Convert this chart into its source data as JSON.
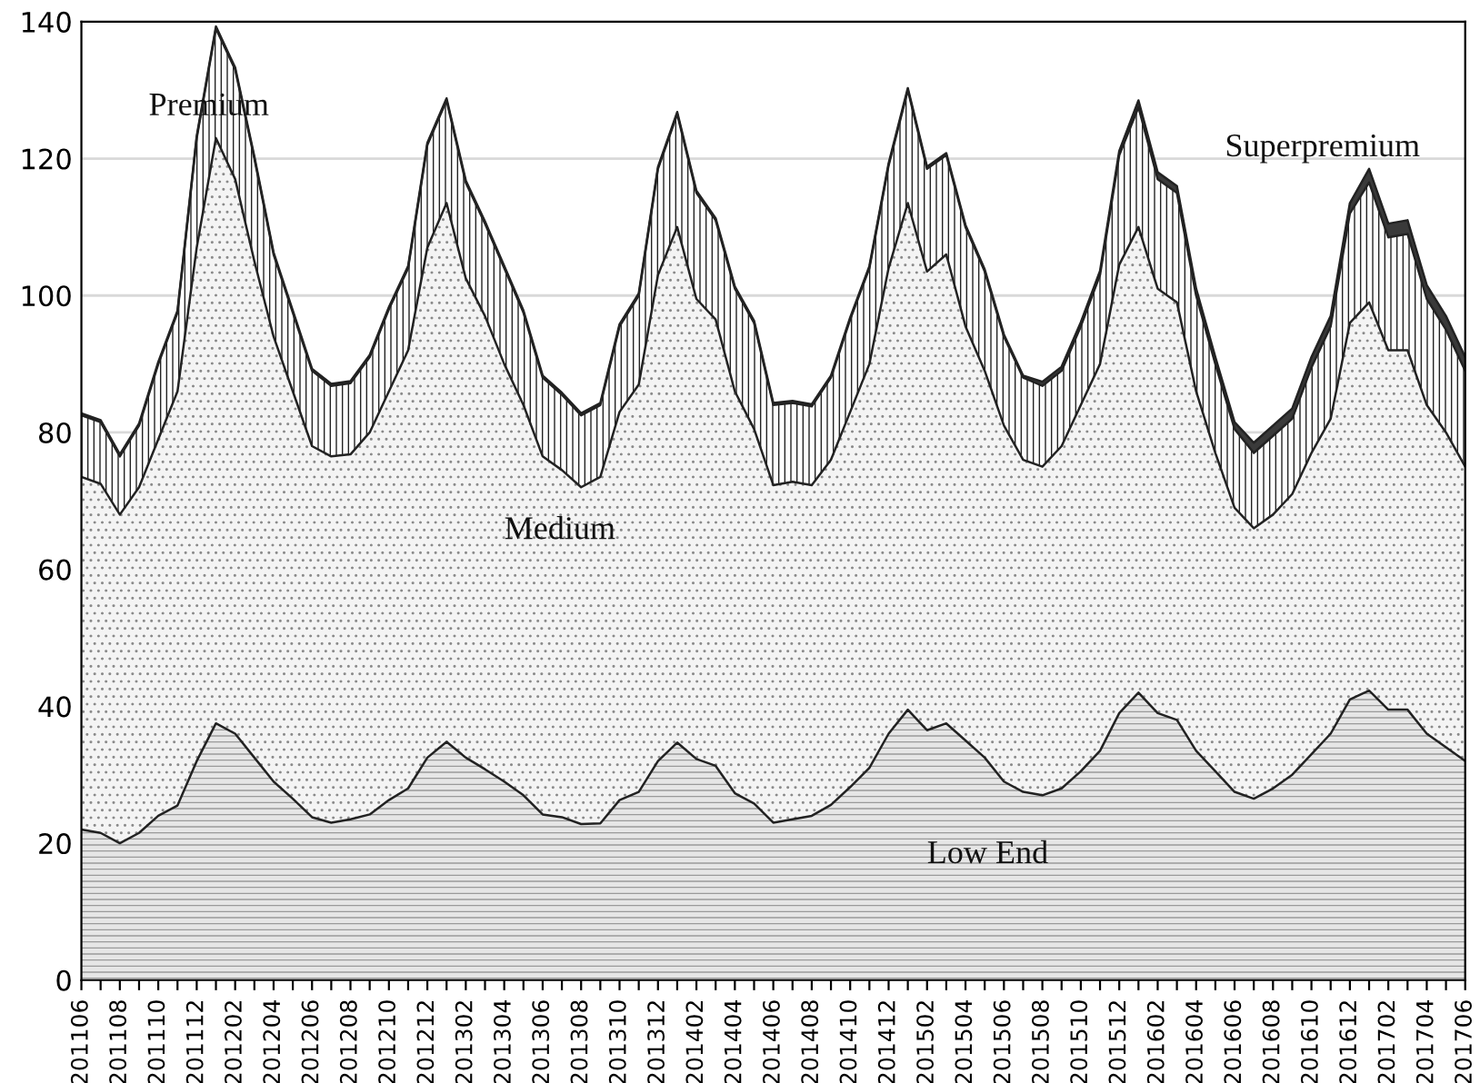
{
  "chart_data": {
    "type": "area",
    "stacked": true,
    "categories": [
      "201106",
      null,
      "201108",
      null,
      "201110",
      null,
      "201112",
      null,
      "201202",
      null,
      "201204",
      null,
      "201206",
      null,
      "201208",
      null,
      "201210",
      null,
      "201212",
      null,
      "201302",
      null,
      "201304",
      null,
      "201306",
      null,
      "201308",
      null,
      "201310",
      null,
      "201312",
      null,
      "201402",
      null,
      "201404",
      null,
      "201406",
      null,
      "201408",
      null,
      "201410",
      null,
      "201412",
      null,
      "201502",
      null,
      "201504",
      null,
      "201506",
      null,
      "201508",
      null,
      "201510",
      null,
      "201512",
      null,
      "201602",
      null,
      "201604",
      null,
      "201606",
      null,
      "201608",
      null,
      "201610",
      null,
      "201612",
      null,
      "201702",
      null,
      "201704",
      null,
      "201706"
    ],
    "series": [
      {
        "name": "Low End",
        "color": "#e6e6e6",
        "values": [
          22,
          21.5,
          20,
          21.5,
          24,
          25.5,
          32,
          37.5,
          36,
          32.5,
          29,
          26.5,
          23.8,
          23,
          23.5,
          24.2,
          26.3,
          28,
          32.5,
          34.8,
          32.5,
          30.8,
          29,
          27,
          24.2,
          23.8,
          22.8,
          22.9,
          26.3,
          27.5,
          32,
          34.7,
          32.3,
          31.3,
          27.3,
          25.8,
          23,
          23.5,
          24,
          25.6,
          28.2,
          31,
          36,
          39.5,
          36.5,
          37.5,
          35,
          32.5,
          29,
          27.5,
          27,
          28,
          30.5,
          33.5,
          39,
          42,
          39,
          38,
          33.5,
          30.5,
          27.5,
          26.5,
          28,
          30,
          33,
          36,
          41,
          42.3,
          39.5,
          39.5,
          36,
          34,
          32
        ]
      },
      {
        "name": "Medium",
        "color": "#f4f4f4",
        "values": [
          51.5,
          51,
          48,
          50.5,
          55,
          60.5,
          75,
          85.5,
          81,
          72.5,
          65,
          59.5,
          54.2,
          53.5,
          53.3,
          55.8,
          59.7,
          64,
          74.5,
          78.7,
          70,
          66.2,
          61,
          57,
          52.3,
          50.7,
          49.2,
          50.6,
          56.7,
          59.5,
          71,
          75.3,
          67.2,
          65.2,
          58.7,
          54.7,
          49.3,
          49.3,
          48.3,
          50.4,
          54.8,
          59,
          68,
          74,
          67,
          68.5,
          60.5,
          56.5,
          52,
          48.5,
          48,
          50,
          53.5,
          56.5,
          65.5,
          68,
          62,
          61,
          52.5,
          46.5,
          41.5,
          39.5,
          40,
          41,
          44,
          46,
          55,
          56.7,
          52.5,
          52.5,
          48,
          46,
          43
        ]
      },
      {
        "name": "Premium",
        "color": "#ffffff",
        "values": [
          9,
          9,
          8.5,
          9,
          11,
          11.5,
          16,
          16,
          16,
          15,
          12,
          11.5,
          11,
          10.3,
          10.4,
          11,
          12,
          12,
          15,
          15,
          14,
          13.5,
          14,
          13.5,
          11.5,
          11,
          10.5,
          10.5,
          12.5,
          13,
          15.5,
          16.5,
          15.5,
          14.5,
          15,
          15.5,
          11.7,
          11.5,
          11.5,
          12,
          13.5,
          14,
          15,
          16.5,
          15,
          14.5,
          14.5,
          14.5,
          13,
          12,
          11.8,
          11,
          11.5,
          13,
          16,
          17.5,
          16,
          16,
          14,
          13,
          11.5,
          11,
          11.5,
          11,
          12.5,
          13.5,
          16,
          17.5,
          16.5,
          17,
          15.5,
          15,
          14
        ]
      },
      {
        "name": "Superpremium",
        "color": "#3a3a3a",
        "values": [
          0.3,
          0.3,
          0.3,
          0.3,
          0.3,
          0.3,
          0.3,
          0.3,
          0.3,
          0.3,
          0.3,
          0.3,
          0.3,
          0.3,
          0.3,
          0.3,
          0.3,
          0.3,
          0.3,
          0.3,
          0.3,
          0.3,
          0.3,
          0.3,
          0.3,
          0.3,
          0.3,
          0.3,
          0.3,
          0.3,
          0.3,
          0.3,
          0.3,
          0.3,
          0.3,
          0.3,
          0.3,
          0.3,
          0.3,
          0.3,
          0.3,
          0.3,
          0.3,
          0.3,
          0.3,
          0.3,
          0.3,
          0.3,
          0.3,
          0.3,
          0.6,
          0.6,
          0.6,
          0.6,
          0.6,
          1,
          1,
          1,
          1,
          1,
          1,
          1.5,
          1.5,
          1.5,
          1.5,
          1.5,
          1.5,
          2,
          2,
          2,
          2,
          2,
          2
        ]
      }
    ],
    "ylim": [
      0,
      140
    ],
    "yticks": [
      0,
      20,
      40,
      60,
      80,
      100,
      120,
      140
    ],
    "grid": "y",
    "legend": false
  }
}
